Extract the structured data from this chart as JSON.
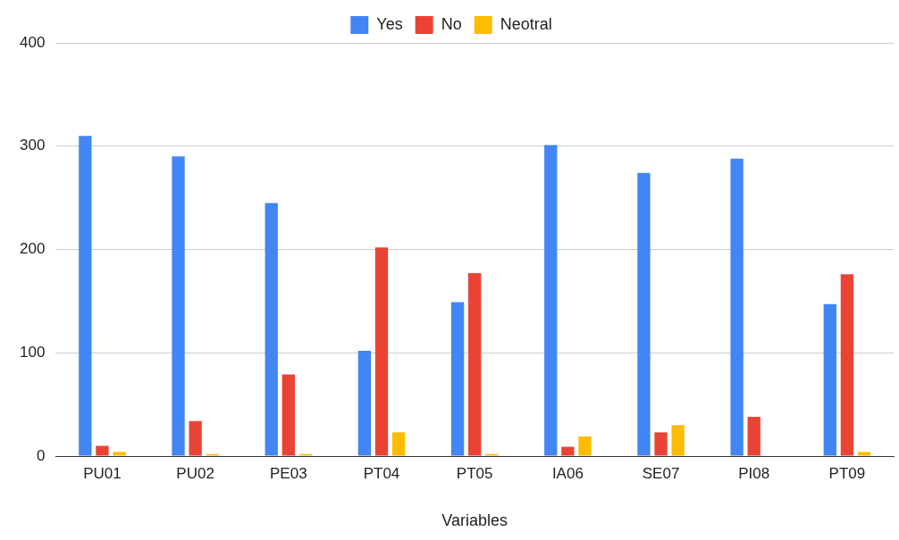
{
  "chart_data": {
    "type": "bar",
    "xlabel": "Variables",
    "categories": [
      "PU01",
      "PU02",
      "PE03",
      "PT04",
      "PT05",
      "IA06",
      "SE07",
      "PI08",
      "PT09"
    ],
    "series": [
      {
        "name": "Yes",
        "color": "#4285f4",
        "values": [
          310,
          290,
          245,
          102,
          149,
          301,
          274,
          288,
          147
        ]
      },
      {
        "name": "No",
        "color": "#ea4335",
        "values": [
          10,
          34,
          79,
          202,
          177,
          9,
          23,
          38,
          176
        ]
      },
      {
        "name": "Neotral",
        "color": "#fbbc04",
        "values": [
          4,
          2,
          2,
          23,
          2,
          19,
          30,
          0,
          4
        ]
      }
    ],
    "ylim": [
      0,
      400
    ],
    "yticks": [
      0,
      100,
      200,
      300,
      400
    ],
    "grid": "y",
    "legend": "top"
  }
}
